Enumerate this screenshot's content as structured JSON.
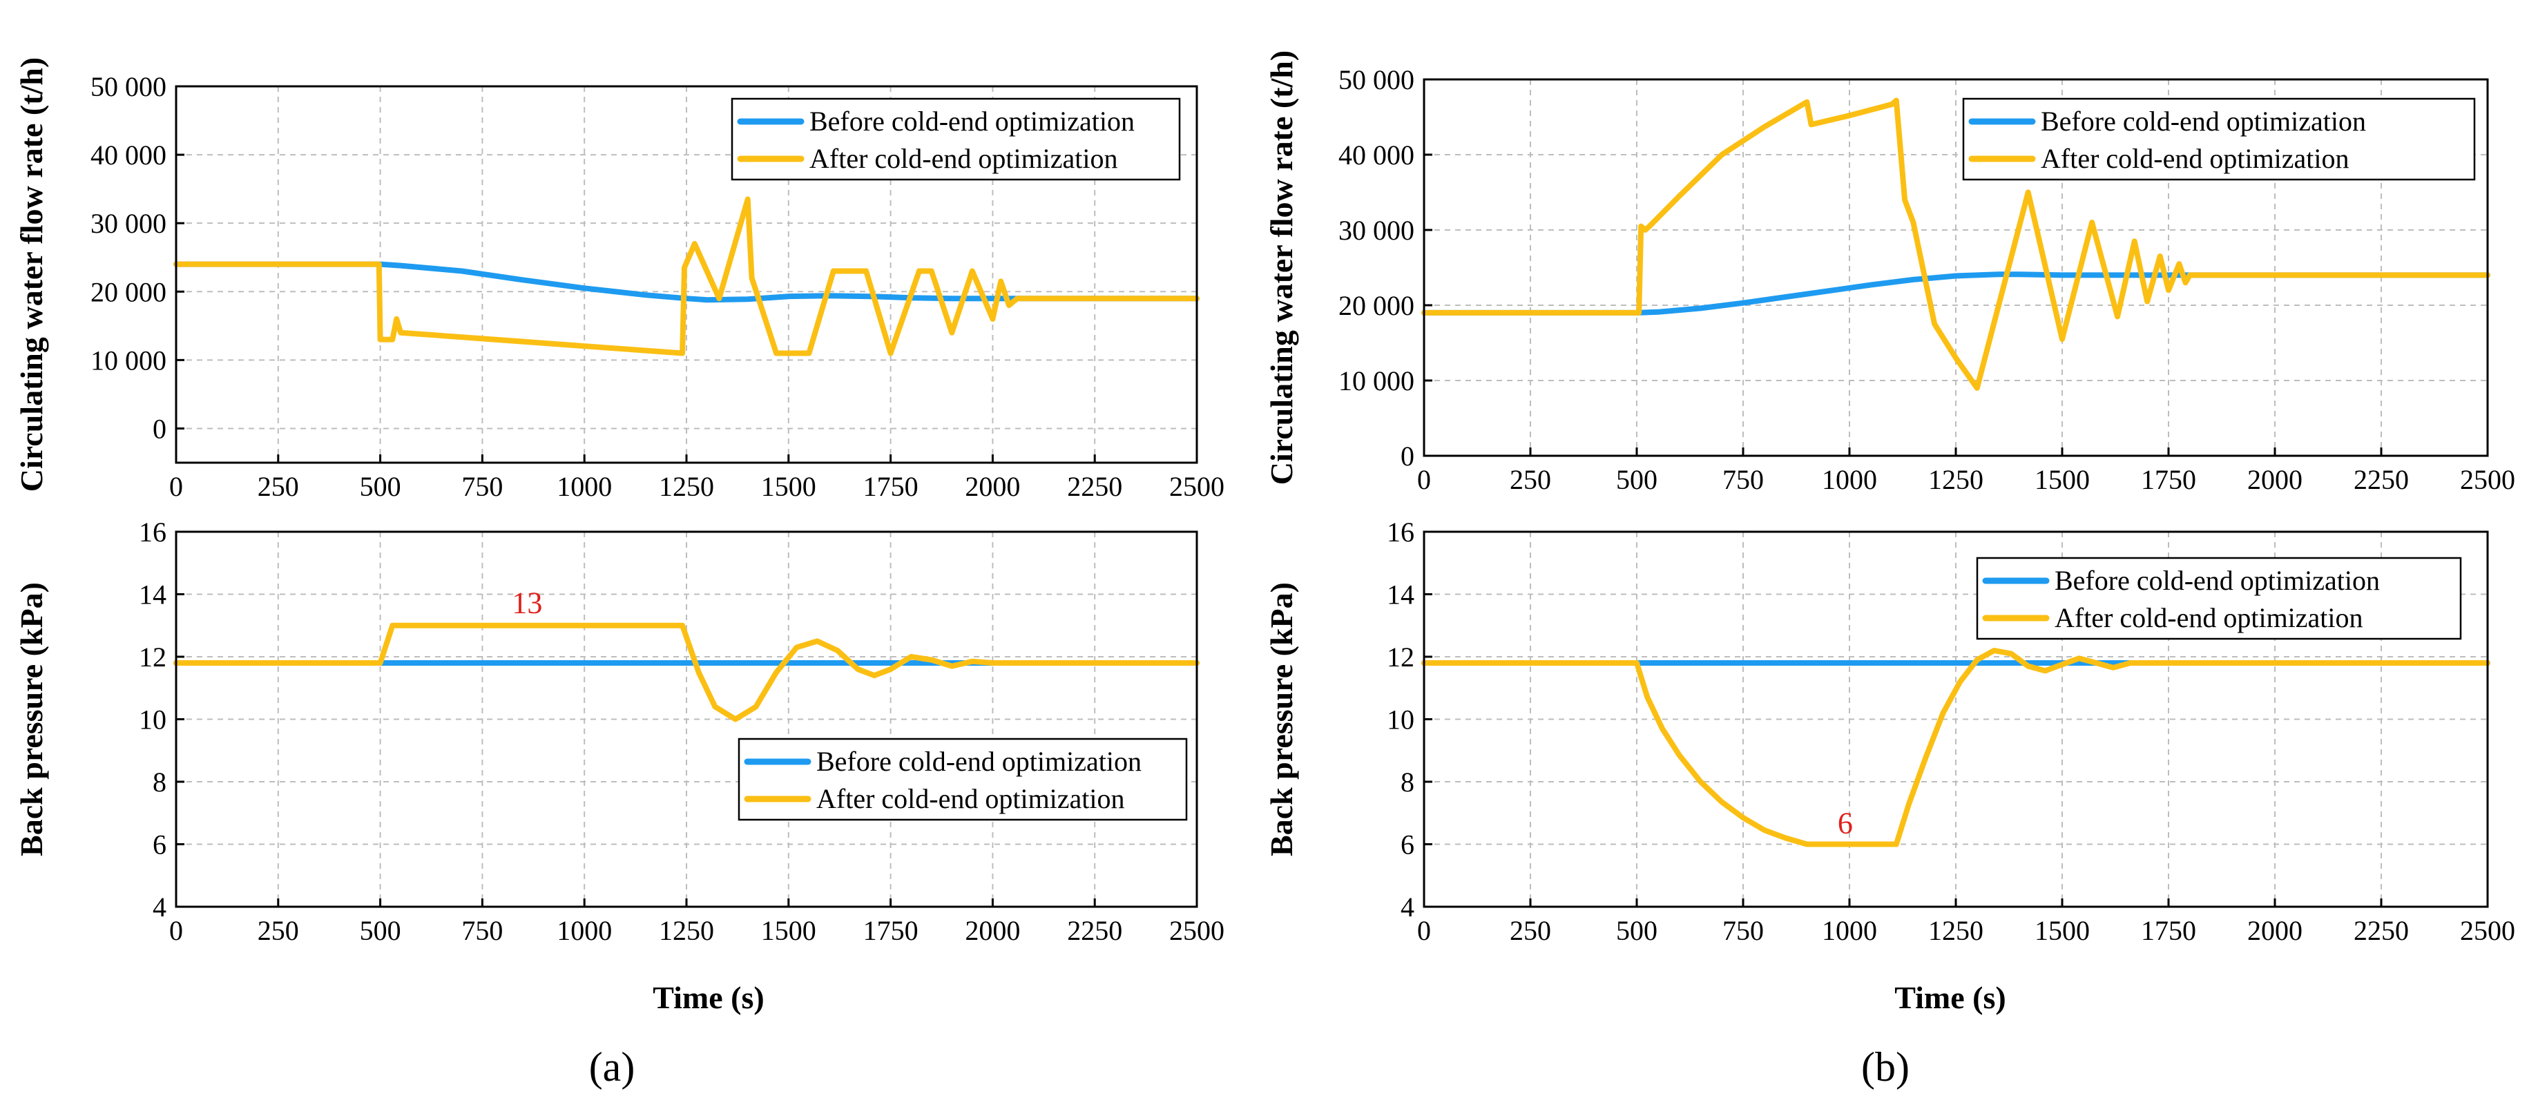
{
  "colors": {
    "before": "#1E9BF0",
    "after": "#FBBF14",
    "annotation": "#E0201B"
  },
  "panels": {
    "a": {
      "label": "(a)",
      "xlabel": "Time (s)"
    },
    "b": {
      "label": "(b)",
      "xlabel": "Time (s)"
    }
  },
  "chart_data": [
    {
      "id": "a_top",
      "type": "line",
      "ylabel": "Circulating water flow rate (t/h)",
      "xlim": [
        0,
        2500
      ],
      "ylim": [
        -5000,
        50000
      ],
      "xticks": [
        0,
        250,
        500,
        750,
        1000,
        1250,
        1500,
        1750,
        2000,
        2250,
        2500
      ],
      "yticks": [
        0,
        10000,
        20000,
        30000,
        40000,
        50000
      ],
      "ytick_labels": [
        "0",
        "10 000",
        "20 000",
        "30 000",
        "40 000",
        "50 000"
      ],
      "grid": true,
      "legend_position": "top-right",
      "series": [
        {
          "name": "Before cold-end optimization",
          "x": [
            0,
            500,
            550,
            700,
            850,
            1000,
            1150,
            1250,
            1300,
            1400,
            1500,
            1600,
            1700,
            1800,
            1900,
            2000,
            2500
          ],
          "y": [
            24000,
            24000,
            23800,
            23000,
            21700,
            20500,
            19500,
            19000,
            18800,
            18900,
            19300,
            19400,
            19300,
            19100,
            19000,
            19000,
            19000
          ]
        },
        {
          "name": "After cold-end optimization",
          "x": [
            0,
            497,
            500,
            530,
            540,
            550,
            1240,
            1245,
            1270,
            1330,
            1400,
            1410,
            1470,
            1550,
            1610,
            1690,
            1750,
            1820,
            1850,
            1900,
            1950,
            2000,
            2020,
            2040,
            2060,
            2500
          ],
          "y": [
            24000,
            24000,
            13000,
            13000,
            16000,
            14000,
            11000,
            23500,
            27000,
            19000,
            33500,
            22000,
            11000,
            11000,
            23000,
            23000,
            11000,
            23000,
            23000,
            14000,
            23000,
            16000,
            21500,
            18000,
            19000,
            19000
          ]
        }
      ]
    },
    {
      "id": "a_bottom",
      "type": "line",
      "ylabel": "Back pressure (kPa)",
      "xlim": [
        0,
        2500
      ],
      "ylim": [
        4,
        16
      ],
      "xticks": [
        0,
        250,
        500,
        750,
        1000,
        1250,
        1500,
        1750,
        2000,
        2250,
        2500
      ],
      "yticks": [
        4,
        6,
        8,
        10,
        12,
        14,
        16
      ],
      "grid": true,
      "legend_position": "lower-right",
      "annotation": {
        "text": "13",
        "x": 860,
        "y": 13.4
      },
      "series": [
        {
          "name": "Before cold-end optimization",
          "x": [
            0,
            2500
          ],
          "y": [
            11.8,
            11.8
          ]
        },
        {
          "name": "After cold-end optimization",
          "x": [
            0,
            500,
            530,
            1240,
            1280,
            1320,
            1370,
            1420,
            1470,
            1520,
            1570,
            1620,
            1670,
            1710,
            1750,
            1800,
            1850,
            1900,
            1950,
            2000,
            2500
          ],
          "y": [
            11.8,
            11.8,
            13,
            13,
            11.5,
            10.4,
            10.0,
            10.4,
            11.5,
            12.3,
            12.5,
            12.2,
            11.6,
            11.4,
            11.6,
            12.0,
            11.9,
            11.7,
            11.85,
            11.8,
            11.8
          ]
        }
      ]
    },
    {
      "id": "b_top",
      "type": "line",
      "ylabel": "Circulating water flow rate (t/h)",
      "xlim": [
        0,
        2500
      ],
      "ylim": [
        0,
        50000
      ],
      "xticks": [
        0,
        250,
        500,
        750,
        1000,
        1250,
        1500,
        1750,
        2000,
        2250,
        2500
      ],
      "yticks": [
        0,
        10000,
        20000,
        30000,
        40000,
        50000
      ],
      "ytick_labels": [
        "0",
        "10 000",
        "20 000",
        "30 000",
        "40 000",
        "50 000"
      ],
      "grid": true,
      "legend_position": "top-right",
      "series": [
        {
          "name": "Before cold-end optimization",
          "x": [
            0,
            500,
            550,
            650,
            750,
            850,
            950,
            1050,
            1150,
            1250,
            1350,
            1400,
            1500,
            1600,
            1700,
            1800,
            2500
          ],
          "y": [
            19000,
            19000,
            19100,
            19600,
            20300,
            21100,
            21900,
            22700,
            23400,
            23900,
            24100,
            24100,
            24000,
            24000,
            24000,
            24000,
            24000
          ]
        },
        {
          "name": "After cold-end optimization",
          "x": [
            0,
            505,
            510,
            520,
            530,
            600,
            700,
            800,
            900,
            910,
            1000,
            1100,
            1110,
            1130,
            1150,
            1200,
            1250,
            1300,
            1420,
            1500,
            1570,
            1630,
            1670,
            1700,
            1730,
            1750,
            1775,
            1790,
            1800,
            2500
          ],
          "y": [
            19000,
            19000,
            30500,
            30000,
            30500,
            34500,
            40000,
            43700,
            47000,
            44000,
            45200,
            46700,
            47200,
            34000,
            31000,
            17500,
            13000,
            9000,
            35000,
            15500,
            31000,
            18500,
            28500,
            20500,
            26500,
            22000,
            25500,
            23000,
            24000,
            24000
          ]
        }
      ]
    },
    {
      "id": "b_bottom",
      "type": "line",
      "ylabel": "Back pressure (kPa)",
      "xlim": [
        0,
        2500
      ],
      "ylim": [
        4,
        16
      ],
      "xticks": [
        0,
        250,
        500,
        750,
        1000,
        1250,
        1500,
        1750,
        2000,
        2250,
        2500
      ],
      "yticks": [
        4,
        6,
        8,
        10,
        12,
        14,
        16
      ],
      "grid": true,
      "legend_position": "top-right",
      "annotation": {
        "text": "6",
        "x": 990,
        "y": 6.35
      },
      "series": [
        {
          "name": "Before cold-end optimization",
          "x": [
            0,
            2500
          ],
          "y": [
            11.8,
            11.8
          ]
        },
        {
          "name": "After cold-end optimization",
          "x": [
            0,
            500,
            525,
            560,
            600,
            650,
            700,
            750,
            800,
            850,
            900,
            1110,
            1140,
            1180,
            1220,
            1260,
            1300,
            1340,
            1380,
            1420,
            1460,
            1500,
            1540,
            1580,
            1620,
            1660,
            1700,
            1750,
            2500
          ],
          "y": [
            11.8,
            11.8,
            10.7,
            9.7,
            8.85,
            8.0,
            7.35,
            6.85,
            6.45,
            6.2,
            6.0,
            6.0,
            7.3,
            8.8,
            10.2,
            11.2,
            11.9,
            12.2,
            12.1,
            11.7,
            11.55,
            11.75,
            11.95,
            11.8,
            11.65,
            11.8,
            11.8,
            11.8,
            11.8
          ]
        }
      ]
    }
  ]
}
